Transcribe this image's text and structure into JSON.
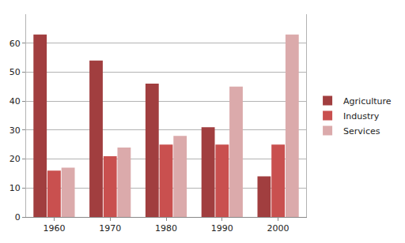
{
  "chart_data": {
    "type": "bar",
    "categories": [
      "1960",
      "1970",
      "1980",
      "1990",
      "2000"
    ],
    "series": [
      {
        "name": "Agriculture",
        "color": "#a13e3f",
        "values": [
          63,
          54,
          46,
          31,
          14
        ]
      },
      {
        "name": "Industry",
        "color": "#c9504f",
        "values": [
          16,
          21,
          25,
          25,
          25
        ]
      },
      {
        "name": "Services",
        "color": "#dbaaab",
        "values": [
          17,
          24,
          28,
          45,
          63
        ]
      }
    ],
    "ylim": [
      0,
      70
    ],
    "yticks": [
      0,
      10,
      20,
      30,
      40,
      50,
      60
    ],
    "grid": true,
    "legend": "right"
  }
}
